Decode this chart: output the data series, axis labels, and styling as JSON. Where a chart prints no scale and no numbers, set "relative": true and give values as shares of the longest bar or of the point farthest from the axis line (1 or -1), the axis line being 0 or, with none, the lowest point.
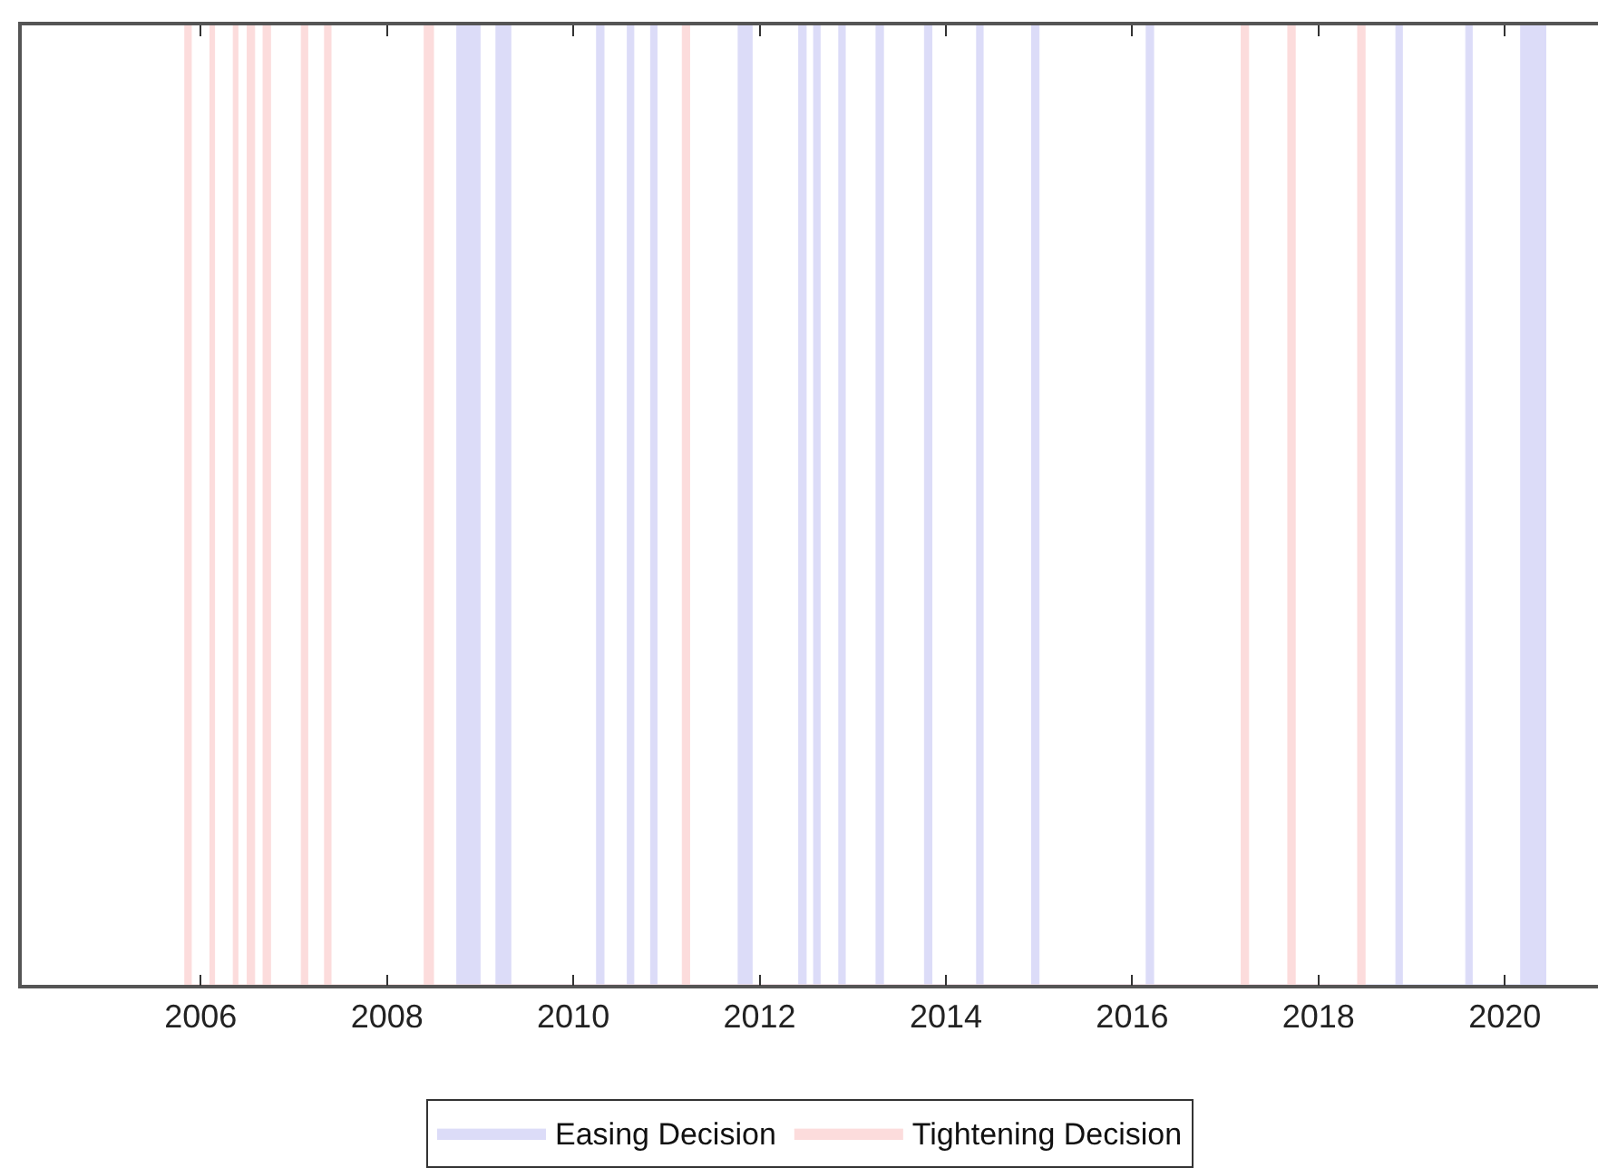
{
  "chart_data": {
    "type": "area",
    "relative": true,
    "xlim": [
      2004.08,
      2021.0
    ],
    "xticks": [
      2006,
      2008,
      2010,
      2012,
      2014,
      2016,
      2018,
      2020
    ],
    "legend": "bottom",
    "series": [
      {
        "name": "Easing Decision",
        "color": "#dcdcf8",
        "x": [
          2008.75,
          2008.75,
          2009.0,
          2009.0,
          2009.17,
          2009.17,
          2009.33,
          2009.33,
          2010.25,
          2010.25,
          2010.33,
          2010.33,
          2010.58,
          2010.58,
          2010.65,
          2010.65,
          2010.83,
          2010.83,
          2010.9,
          2010.9,
          2011.77,
          2011.77,
          2011.92,
          2011.92,
          2012.42,
          2012.42,
          2012.5,
          2012.5,
          2012.58,
          2012.58,
          2012.65,
          2012.65,
          2012.85,
          2012.85,
          2012.92,
          2012.92,
          2013.25,
          2013.25,
          2013.33,
          2013.33,
          2013.77,
          2013.77,
          2013.85,
          2013.85,
          2014.33,
          2014.33,
          2014.4,
          2014.4,
          2014.92,
          2014.92,
          2015.0,
          2015.0,
          2016.15,
          2016.15,
          2016.23,
          2016.23,
          2018.83,
          2018.83,
          2018.9,
          2018.9,
          2019.58,
          2019.58,
          2019.65,
          2019.65,
          2020.17,
          2020.17,
          2020.44,
          2020.44
        ],
        "values": [
          0,
          1,
          1,
          0,
          0,
          1,
          1,
          0,
          0,
          1,
          1,
          0,
          0,
          1,
          1,
          0,
          0,
          1,
          1,
          0,
          0,
          1,
          1,
          0,
          0,
          1,
          1,
          0,
          0,
          1,
          1,
          0,
          0,
          1,
          1,
          0,
          0,
          1,
          1,
          0,
          0,
          1,
          1,
          0,
          0,
          1,
          1,
          0,
          0,
          1,
          1,
          0,
          0,
          1,
          1,
          0,
          0,
          1,
          1,
          0,
          0,
          1,
          1,
          0,
          0,
          1,
          1,
          0
        ]
      },
      {
        "name": "Tightening Decision",
        "color": "#fcdcdc",
        "x": [
          2005.83,
          2005.83,
          2005.9,
          2005.9,
          2006.1,
          2006.1,
          2006.15,
          2006.15,
          2006.35,
          2006.35,
          2006.4,
          2006.4,
          2006.5,
          2006.5,
          2006.58,
          2006.58,
          2006.67,
          2006.67,
          2006.75,
          2006.75,
          2007.08,
          2007.08,
          2007.15,
          2007.15,
          2007.33,
          2007.33,
          2007.4,
          2007.4,
          2008.4,
          2008.4,
          2008.5,
          2008.5,
          2011.17,
          2011.17,
          2011.25,
          2011.25,
          2017.17,
          2017.17,
          2017.25,
          2017.25,
          2017.67,
          2017.67,
          2017.75,
          2017.75,
          2018.42,
          2018.42,
          2018.5,
          2018.5
        ],
        "values": [
          0,
          1,
          1,
          0,
          0,
          1,
          1,
          0,
          0,
          1,
          1,
          0,
          0,
          1,
          1,
          0,
          0,
          1,
          1,
          0,
          0,
          1,
          1,
          0,
          0,
          1,
          1,
          0,
          0,
          1,
          1,
          0,
          0,
          1,
          1,
          0,
          0,
          1,
          1,
          0,
          0,
          1,
          1,
          0,
          0,
          1,
          1,
          0
        ]
      }
    ]
  }
}
